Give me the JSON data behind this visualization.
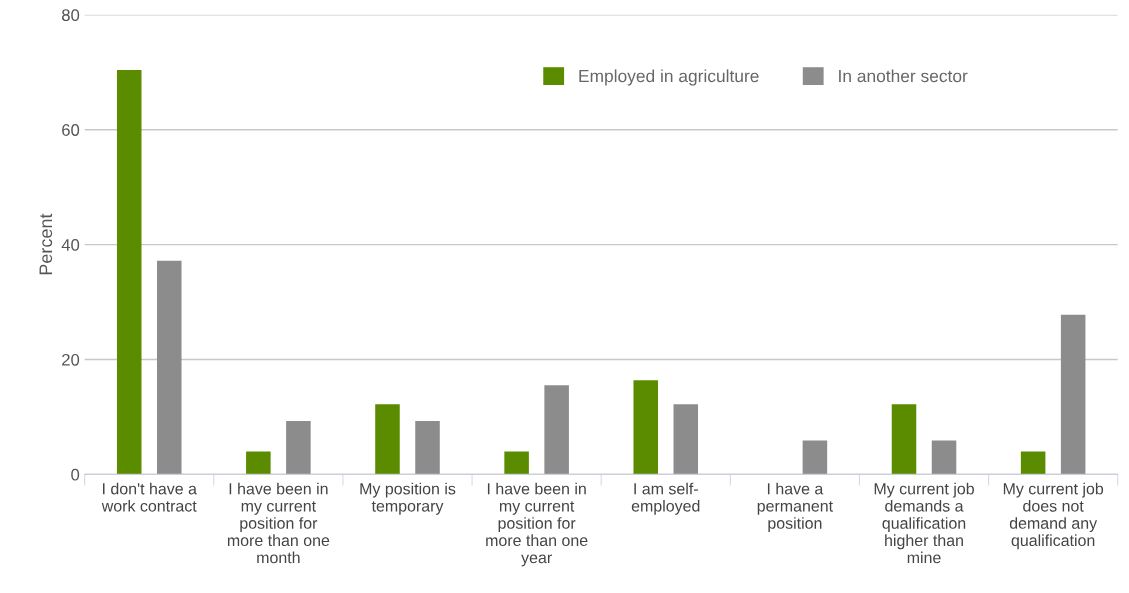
{
  "chart_data": {
    "type": "bar",
    "ylabel": "Percent",
    "categories": [
      "I don't have a\nwork contract",
      "I have been in\nmy current\nposition for\nmore than one\nmonth",
      "My position is\ntemporary",
      "I have been in\nmy current\nposition for\nmore than one\nyear",
      "I am self-\nemployed",
      "I have a\npermanent\nposition",
      "My current job\ndemands a\nqualification\nhigher than\nmine",
      "My current job\ndoes not\ndemand any\nqualification"
    ],
    "series": [
      {
        "name": "Employed in agriculture",
        "color": "#5b8c00",
        "values": [
          70.4,
          4.0,
          12.2,
          4.0,
          16.4,
          0,
          12.2,
          4.0
        ]
      },
      {
        "name": "In another sector",
        "color": "#8c8c8c",
        "values": [
          37.2,
          9.3,
          9.3,
          15.5,
          12.2,
          5.9,
          5.9,
          27.8
        ]
      }
    ],
    "ylim": [
      0,
      80
    ],
    "yticks": [
      0,
      20,
      40,
      60,
      80
    ],
    "grid": "y",
    "legend": "top right"
  }
}
